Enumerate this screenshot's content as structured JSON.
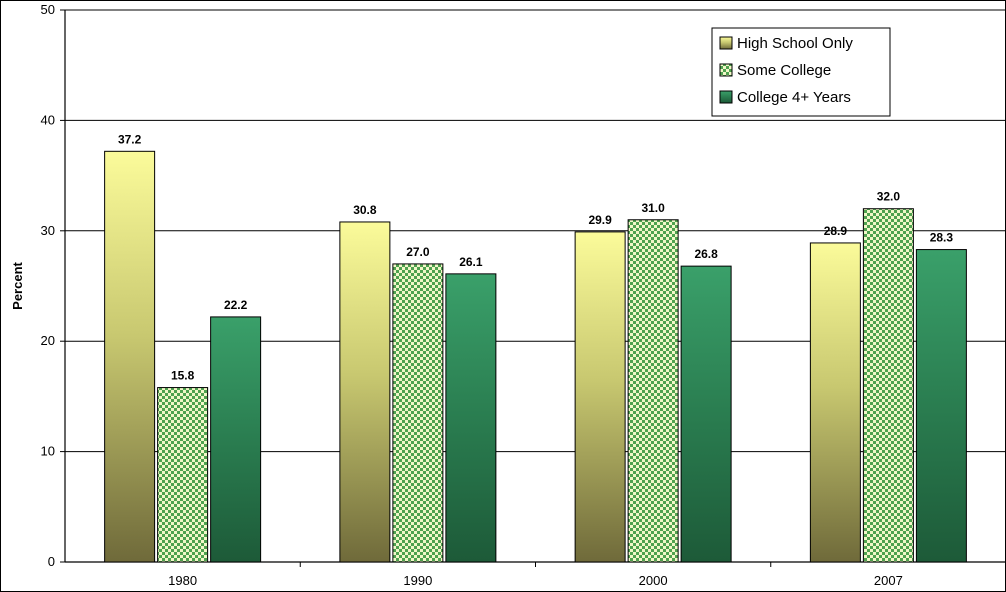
{
  "chart_data": {
    "type": "bar",
    "categories": [
      "1980",
      "1990",
      "2000",
      "2007"
    ],
    "series": [
      {
        "name": "High School Only",
        "values": [
          37.2,
          30.8,
          29.9,
          28.9
        ]
      },
      {
        "name": "Some College",
        "values": [
          15.8,
          27.0,
          31.0,
          32.0
        ]
      },
      {
        "name": "College 4+ Years",
        "values": [
          22.2,
          26.1,
          26.8,
          28.3
        ]
      }
    ],
    "data_labels": [
      [
        "37.2",
        "30.8",
        "29.9",
        "28.9"
      ],
      [
        "15.8",
        "27.0",
        "31.0",
        "32.0"
      ],
      [
        "22.2",
        "26.1",
        "26.8",
        "28.3"
      ]
    ],
    "title": "",
    "xlabel": "",
    "ylabel": "Percent",
    "ylim": [
      0,
      50
    ],
    "yticks": [
      0,
      10,
      20,
      30,
      40,
      50
    ],
    "grid": true,
    "legend_position": "top-right",
    "colors": {
      "high_school": "#e8e873",
      "some_college": "#b9dc7a",
      "college": "#2e8b57"
    }
  }
}
